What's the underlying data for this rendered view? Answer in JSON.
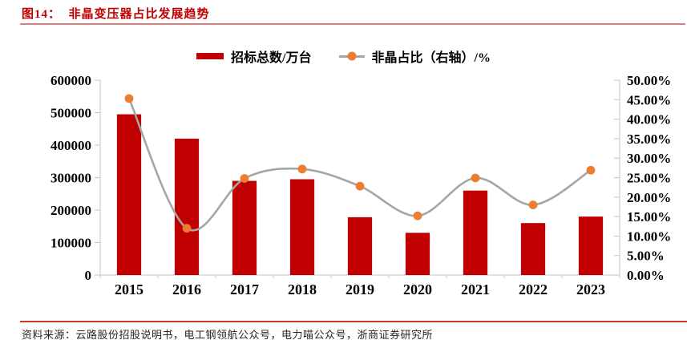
{
  "header": {
    "title": "图14：  非晶变压器占比发展趋势"
  },
  "legend": {
    "bar_label": "招标总数/万台",
    "line_label": "非晶占比（右轴）/%"
  },
  "footer": {
    "source": "资料来源：云路股份招股说明书，电工钢领航公众号，电力喵公众号，浙商证券研究所"
  },
  "chart_data": {
    "type": "bar",
    "subtype": "bar-line-combo",
    "title": "非晶变压器占比发展趋势",
    "categories": [
      "2015",
      "2016",
      "2017",
      "2018",
      "2019",
      "2020",
      "2021",
      "2022",
      "2023"
    ],
    "series": [
      {
        "name": "招标总数/万台",
        "type": "bar",
        "axis": "left",
        "values": [
          495000,
          420000,
          290000,
          295000,
          178000,
          130000,
          260000,
          160000,
          180000
        ]
      },
      {
        "name": "非晶占比（右轴）/%",
        "type": "line",
        "axis": "right",
        "smooth": true,
        "values": [
          45.3,
          12.0,
          24.8,
          27.2,
          22.8,
          15.2,
          24.9,
          18.0,
          26.9
        ]
      }
    ],
    "left_axis": {
      "min": 0,
      "max": 600000,
      "step": 100000,
      "tick_labels": [
        "0",
        "100000",
        "200000",
        "300000",
        "400000",
        "500000",
        "600000"
      ]
    },
    "right_axis": {
      "min": 0,
      "max": 50,
      "step": 5,
      "tick_labels": [
        "0.00%",
        "5.00%",
        "10.00%",
        "15.00%",
        "20.00%",
        "25.00%",
        "30.00%",
        "35.00%",
        "40.00%",
        "45.00%",
        "50.00%"
      ]
    },
    "grid": false,
    "legend_position": "top-center",
    "colors": {
      "bar": "#c00000",
      "line": "#a6a6a6",
      "marker": "#ed7d31",
      "axis": "#c6c6c6",
      "tick_label": "#000000",
      "title": "#c00000"
    }
  }
}
